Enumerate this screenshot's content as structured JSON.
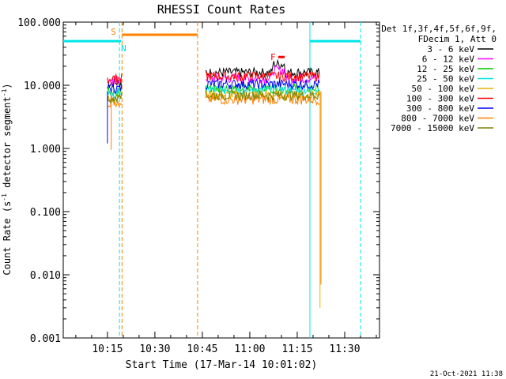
{
  "chart_data": {
    "type": "line",
    "title": "RHESSI Count Rates",
    "xlabel": "Start Time (17-Mar-14 10:01:02)",
    "ylabel_main": "Count Rate (s",
    "ylabel_sup": "-1",
    "ylabel_tail": " detector segment",
    "ylabel_sup2": "-1",
    "ylabel_close": ")",
    "x_unit": "minutes since 10:00",
    "xlim": [
      1.03,
      41.4
    ],
    "ylim": [
      0.001,
      100
    ],
    "yscale": "log",
    "x_ticks": [
      {
        "value": 15,
        "label": "10:15"
      },
      {
        "value": 30,
        "label": "10:30"
      },
      {
        "value": 45,
        "label": "10:45"
      },
      {
        "value": 60,
        "label": "11:00"
      },
      {
        "value": 75,
        "label": "11:15"
      },
      {
        "value": 90,
        "label": "11:30"
      }
    ],
    "y_ticks": [
      {
        "value": 0.001,
        "label": "0.001"
      },
      {
        "value": 0.01,
        "label": "0.010"
      },
      {
        "value": 0.1,
        "label": "0.100"
      },
      {
        "value": 1,
        "label": "1.000"
      },
      {
        "value": 10,
        "label": "10.000"
      },
      {
        "value": 100,
        "label": "100.000"
      }
    ],
    "legend": {
      "placement": "right",
      "header": [
        "Det 1f,3f,4f,5f,6f,9f,",
        "FDecim 1, Att 0"
      ],
      "entries": [
        {
          "name": "3 - 6 keV",
          "color": "#000000"
        },
        {
          "name": "6 - 12 keV",
          "color": "#ff00ff"
        },
        {
          "name": "12 - 25 keV",
          "color": "#00cc00"
        },
        {
          "name": "25 - 50 keV",
          "color": "#00e5e5"
        },
        {
          "name": "50 - 100 keV",
          "color": "#e5b200"
        },
        {
          "name": "100 - 300 keV",
          "color": "#ff0000"
        },
        {
          "name": "300 - 800 keV",
          "color": "#0000ff"
        },
        {
          "name": "800 - 7000 keV",
          "color": "#ff8000"
        },
        {
          "name": "7000 - 15000 keV",
          "color": "#808000"
        }
      ]
    },
    "segments": [
      {
        "x0": 15,
        "x1": 19.5,
        "levels": [
          11,
          12,
          8,
          7.5,
          6,
          13,
          9,
          5.5,
          6.5
        ]
      },
      {
        "x0": 46,
        "x1": 82,
        "levels": [
          16,
          13,
          9,
          8.5,
          7,
          14,
          10.5,
          6,
          7
        ]
      }
    ],
    "bars": [
      {
        "label": "",
        "color": "#00e5e5",
        "x0": 1.03,
        "x1": 18.8,
        "value": 50
      },
      {
        "label": "N",
        "color": "#00e5e5",
        "x0": 18.8,
        "x1": 19.3,
        "value": 50
      },
      {
        "label": "S",
        "color": "#ff8000",
        "x0": 19.6,
        "x1": 43.5,
        "value": 63
      },
      {
        "label": "F",
        "color": "#ff0000",
        "x0": 69,
        "x1": 71,
        "value": 28
      },
      {
        "label": "",
        "color": "#00e5e5",
        "x0": 79,
        "x1": 95,
        "value": 50
      }
    ],
    "vlines": [
      {
        "x": 18.8,
        "color": "#00e5e5",
        "dashed": true
      },
      {
        "x": 19.6,
        "color": "#ff8000",
        "dashed": true
      },
      {
        "x": 43.5,
        "color": "#ff8000",
        "dashed": true
      },
      {
        "x": 79,
        "color": "#00e5e5",
        "dashed": false
      },
      {
        "x": 95,
        "color": "#00e5e5",
        "dashed": true
      }
    ],
    "timestamp": "21-Oct-2021 11:38"
  }
}
